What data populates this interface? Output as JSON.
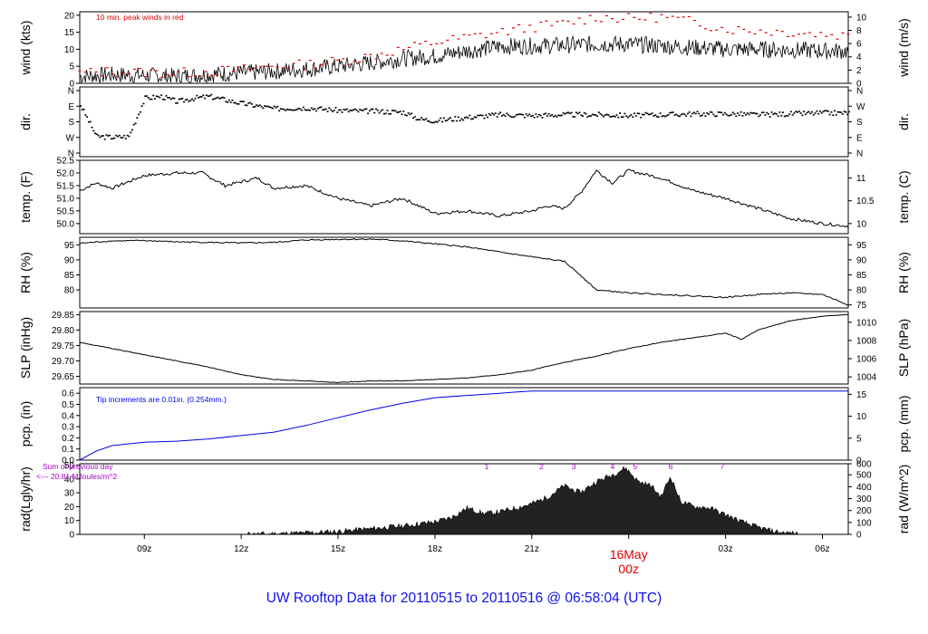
{
  "caption": "UW Rooftop Data for 20110515  to  20110516 @ 06:58:04  (UTC)",
  "date_label": "16May",
  "date_sublabel": "00z",
  "colors": {
    "wind_peak": "#dd0000",
    "pcp": "#0000ee",
    "rad_labels": "#aa00cc",
    "date_label": "#dd0000",
    "caption": "#1010ee"
  },
  "chart_data": [
    {
      "type": "line",
      "id": "wind",
      "left_label": "wind (kts)",
      "right_label": "wind (m/s)",
      "annotation": "10 min. peak winds in red",
      "x_ticks": [
        "09z",
        "12z",
        "15z",
        "18z",
        "21z",
        "03z",
        "06z"
      ],
      "xlim_hours": [
        7.0,
        30.8
      ],
      "ylim": [
        0,
        21
      ],
      "left_ticks": [
        0,
        5,
        10,
        15,
        20
      ],
      "right_ticks": [
        0,
        2,
        4,
        6,
        8,
        10
      ],
      "series": [
        {
          "name": "wind",
          "x": [
            7,
            8,
            9,
            10,
            11,
            12,
            13,
            14,
            15,
            16,
            17,
            18,
            19,
            20,
            21,
            22,
            23,
            24,
            25,
            26,
            27,
            28,
            29,
            30,
            30.8
          ],
          "values": [
            2,
            2.5,
            2.3,
            2,
            2.6,
            3,
            3.5,
            4.2,
            5,
            6,
            7.2,
            8,
            9.5,
            10.8,
            11,
            11.2,
            11.5,
            11.5,
            11,
            10.5,
            10,
            10,
            9.8,
            9.5,
            9.5
          ]
        },
        {
          "name": "10 min. peak",
          "x": [
            7,
            8,
            9,
            10,
            11,
            12,
            13,
            14,
            15,
            16,
            17,
            18,
            19,
            20,
            21,
            22,
            23,
            24,
            25,
            26,
            27,
            28,
            29,
            30,
            30.8
          ],
          "values": [
            3,
            3.5,
            3.2,
            3,
            3.5,
            4,
            5,
            5.5,
            6.5,
            8,
            10,
            12,
            13.5,
            15,
            16.5,
            17.5,
            19.5,
            19,
            19.5,
            18,
            16,
            15.5,
            15,
            14.5,
            14
          ]
        }
      ]
    },
    {
      "type": "scatter",
      "id": "dir",
      "left_label": "dir.",
      "right_label": "dir.",
      "left_ticks": [
        "N",
        "E",
        "S",
        "W",
        "N"
      ],
      "ylim": [
        0,
        360
      ],
      "series": [
        {
          "name": "direction",
          "x": [
            7,
            7.5,
            8,
            8.5,
            9,
            9.5,
            10,
            10.5,
            11,
            11.5,
            12,
            13,
            14,
            15,
            16,
            17,
            17.5,
            18,
            19,
            20,
            21,
            22,
            23,
            24,
            25,
            26,
            27,
            28,
            29,
            30,
            30.8
          ],
          "values": [
            280,
            100,
            95,
            100,
            320,
            330,
            300,
            320,
            330,
            310,
            290,
            260,
            265,
            250,
            245,
            240,
            200,
            190,
            210,
            225,
            220,
            225,
            225,
            220,
            225,
            230,
            230,
            225,
            230,
            235,
            235
          ]
        }
      ]
    },
    {
      "type": "line",
      "id": "temp",
      "left_label": "temp. (F)",
      "right_label": "temp. (C)",
      "ylim": [
        49.6,
        52.5
      ],
      "left_ticks": [
        50.0,
        50.5,
        51.0,
        51.5,
        52.0,
        52.5
      ],
      "right_ticks": [
        10,
        10.5,
        11
      ],
      "series": [
        {
          "name": "temperature",
          "x": [
            7,
            7.5,
            8,
            9,
            10,
            10.8,
            11.5,
            12.5,
            13,
            14,
            15,
            16,
            17,
            18,
            19,
            20,
            21,
            21.5,
            22,
            22.5,
            23,
            23.5,
            24,
            25,
            26,
            27,
            28,
            29,
            30,
            30.8
          ],
          "values": [
            51.3,
            51.6,
            51.4,
            51.9,
            52.0,
            52.0,
            51.5,
            51.8,
            51.4,
            51.5,
            51.0,
            50.7,
            51.0,
            50.4,
            50.5,
            50.3,
            50.5,
            50.7,
            50.6,
            51.2,
            52.1,
            51.6,
            52.1,
            51.8,
            51.3,
            51.0,
            50.6,
            50.2,
            50.0,
            49.9
          ]
        }
      ]
    },
    {
      "type": "line",
      "id": "rh",
      "left_label": "RH (%)",
      "right_label": "RH (%)",
      "ylim": [
        74,
        97.5
      ],
      "left_ticks": [
        80,
        85,
        90,
        95
      ],
      "right_ticks": [
        75,
        80,
        85,
        90,
        95
      ],
      "series": [
        {
          "name": "relative humidity",
          "x": [
            7,
            8,
            9,
            10,
            11,
            12,
            13,
            14,
            15,
            16,
            17,
            18,
            19,
            20,
            21,
            22,
            22.5,
            23,
            24,
            25,
            26,
            27,
            28,
            29,
            30,
            30.8
          ],
          "values": [
            95.5,
            96.3,
            96.4,
            96.0,
            95.8,
            95.6,
            95.8,
            96.6,
            96.8,
            96.9,
            96.3,
            95.3,
            94.3,
            92.6,
            91.0,
            89.5,
            85.0,
            80.0,
            79.0,
            78.5,
            78.0,
            77.5,
            78.5,
            79.0,
            78.5,
            75.0
          ]
        }
      ]
    },
    {
      "type": "line",
      "id": "slp",
      "left_label": "SLP (inHg)",
      "right_label": "SLP (hPa)",
      "ylim": [
        29.625,
        29.86
      ],
      "left_ticks": [
        29.65,
        29.7,
        29.75,
        29.8,
        29.85
      ],
      "right_ticks": [
        1004,
        1006,
        1008,
        1010
      ],
      "series": [
        {
          "name": "sea level pressure",
          "x": [
            7,
            8,
            9,
            10,
            11,
            12,
            13,
            14,
            15,
            16,
            17,
            18,
            19,
            20,
            21,
            22,
            23,
            24,
            25,
            26,
            27,
            27.5,
            28,
            29,
            30,
            30.8
          ],
          "values": [
            29.76,
            29.74,
            29.72,
            29.7,
            29.68,
            29.655,
            29.64,
            29.635,
            29.63,
            29.635,
            29.635,
            29.64,
            29.645,
            29.655,
            29.67,
            29.695,
            29.715,
            29.74,
            29.76,
            29.775,
            29.79,
            29.77,
            29.8,
            29.83,
            29.845,
            29.85
          ]
        }
      ]
    },
    {
      "type": "line",
      "id": "pcp",
      "left_label": "pcp. (in)",
      "right_label": "pcp. (mm)",
      "annotation": "Tip increments are 0.01in. (0.254mm.)",
      "ylim": [
        0,
        0.65
      ],
      "left_ticks": [
        0.0,
        0.1,
        0.2,
        0.3,
        0.4,
        0.5,
        0.6
      ],
      "right_ticks": [
        0,
        5,
        10,
        15
      ],
      "series": [
        {
          "name": "precipitation",
          "x": [
            7,
            7.5,
            8,
            9,
            10,
            11,
            12,
            13,
            14,
            15,
            16,
            17,
            18,
            19,
            20,
            20.5,
            21,
            30.8
          ],
          "values": [
            0,
            0.08,
            0.13,
            0.16,
            0.17,
            0.19,
            0.22,
            0.25,
            0.31,
            0.38,
            0.45,
            0.51,
            0.56,
            0.58,
            0.6,
            0.61,
            0.62,
            0.62
          ]
        }
      ]
    },
    {
      "type": "area",
      "id": "rad",
      "left_label": "rad(Lgly/hr)",
      "right_label": "rad (W/m^2)",
      "annotation_lines": [
        "Sum of previous day",
        "<--- 20.81 MJoules/m^2"
      ],
      "marker_labels": [
        "1",
        "2",
        "3",
        "4",
        "5",
        "6",
        "7"
      ],
      "marker_hours": [
        19.6,
        21.3,
        22.3,
        23.5,
        24.2,
        25.3,
        26.9
      ],
      "ylim": [
        0,
        51
      ],
      "left_ticks": [
        0,
        10,
        20,
        30,
        40,
        50
      ],
      "right_ticks": [
        0,
        100,
        200,
        300,
        400,
        500,
        600
      ],
      "series": [
        {
          "name": "radiation",
          "x": [
            12.2,
            13,
            14,
            15,
            16,
            17,
            18,
            18.5,
            19,
            19.5,
            20,
            20.5,
            21,
            21.5,
            22,
            22.5,
            23,
            23.5,
            23.9,
            24.3,
            24.7,
            25,
            25.3,
            25.6,
            26,
            26.5,
            27,
            27.5,
            28,
            28.5,
            29.3
          ],
          "values": [
            0,
            0.3,
            1,
            2,
            4,
            6,
            9,
            12,
            19,
            15,
            16,
            19,
            22,
            27,
            35,
            30,
            38,
            43,
            48,
            38,
            35,
            27,
            42,
            24,
            20,
            19,
            14,
            9,
            5,
            2,
            0
          ]
        }
      ]
    }
  ]
}
